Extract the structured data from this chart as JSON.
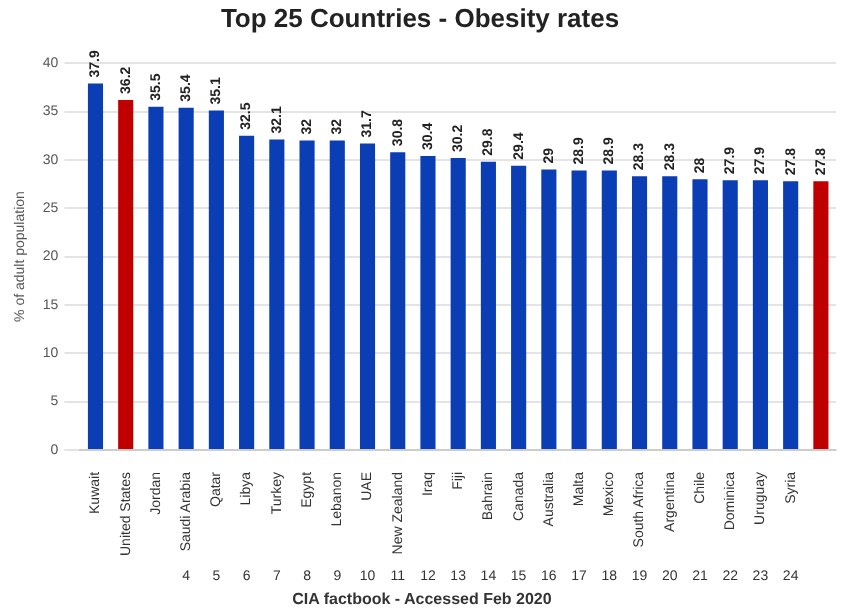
{
  "chart_data": {
    "type": "bar",
    "title": "Top 25 Countries - Obesity rates",
    "ylabel": "% of adult population",
    "categories": [
      "Kuwait",
      "United States",
      "Jordan",
      "Saudi Arabia",
      "Qatar",
      "Libya",
      "Turkey",
      "Egypt",
      "Lebanon",
      "UAE",
      "New Zealand",
      "Iraq",
      "Fiji",
      "Bahrain",
      "Canada",
      "Australia",
      "Malta",
      "Mexico",
      "South Africa",
      "Argentina",
      "Chile",
      "Dominica",
      "Uruguay",
      "Syria",
      null
    ],
    "values": [
      37.9,
      36.2,
      35.5,
      35.4,
      35.1,
      32.5,
      32.1,
      32,
      32,
      31.7,
      30.8,
      30.4,
      30.2,
      29.8,
      29.4,
      29,
      28.9,
      28.9,
      28.3,
      28.3,
      28,
      27.9,
      27.9,
      27.8,
      27.8
    ],
    "colors": [
      "#0b3db5",
      "#c00000",
      "#0b3db5",
      "#0b3db5",
      "#0b3db5",
      "#0b3db5",
      "#0b3db5",
      "#0b3db5",
      "#0b3db5",
      "#0b3db5",
      "#0b3db5",
      "#0b3db5",
      "#0b3db5",
      "#0b3db5",
      "#0b3db5",
      "#0b3db5",
      "#0b3db5",
      "#0b3db5",
      "#0b3db5",
      "#0b3db5",
      "#0b3db5",
      "#0b3db5",
      "#0b3db5",
      "#0b3db5",
      "#c00000"
    ],
    "ylim": [
      0,
      40
    ],
    "yticks": [
      0,
      5,
      10,
      15,
      20,
      25,
      30,
      35,
      40
    ],
    "grid": "y",
    "data_labels": true,
    "annotations": [
      "4",
      "5",
      "6",
      "7",
      "8",
      "9",
      "10",
      "11",
      "12",
      "13",
      "14",
      "15",
      "16",
      "17",
      "18",
      "19",
      "20",
      "21",
      "22",
      "23",
      "24",
      "CIA factbook - Accessed Feb 2020"
    ]
  }
}
